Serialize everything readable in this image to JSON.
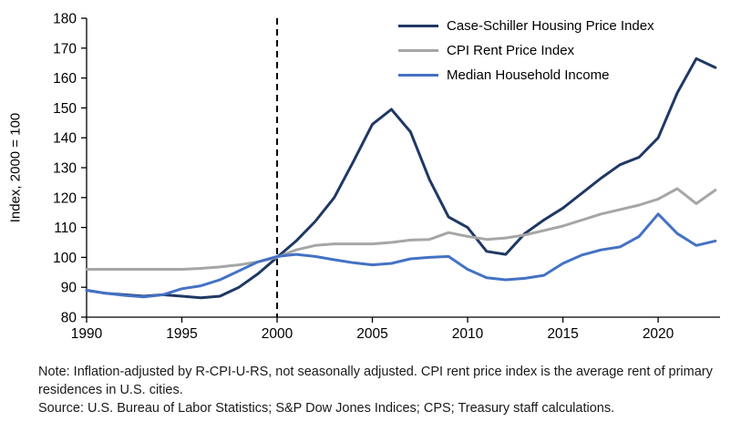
{
  "chart_data": {
    "type": "line",
    "title": "",
    "xlabel": "",
    "ylabel": "Index, 2000 = 100",
    "xlim": [
      1990,
      2023.25
    ],
    "ylim": [
      80,
      180
    ],
    "x_ticks": [
      1990,
      1995,
      2000,
      2005,
      2010,
      2015,
      2020
    ],
    "y_ticks": [
      80,
      90,
      100,
      110,
      120,
      130,
      140,
      150,
      160,
      170,
      180
    ],
    "grid": false,
    "legend_position": "top-right-inside",
    "reference_line_x": 2000,
    "x": [
      1990,
      1991,
      1992,
      1993,
      1994,
      1995,
      1996,
      1997,
      1998,
      1999,
      2000,
      2001,
      2002,
      2003,
      2004,
      2005,
      2006,
      2007,
      2008,
      2009,
      2010,
      2011,
      2012,
      2013,
      2014,
      2015,
      2016,
      2017,
      2018,
      2019,
      2020,
      2021,
      2022,
      2023
    ],
    "series": [
      {
        "name": "Case-Schiller Housing Price Index",
        "color": "#1f3864",
        "values": [
          89,
          88,
          87.5,
          87,
          87.5,
          87,
          86.5,
          87,
          90,
          94.5,
          100,
          105.5,
          112,
          120,
          132,
          144.5,
          149.5,
          142,
          126,
          113.5,
          110,
          102,
          101,
          108,
          112.5,
          116.5,
          121.5,
          126.5,
          131,
          133.5,
          140,
          155,
          166.5,
          163.5
        ]
      },
      {
        "name": "CPI Rent Price Index",
        "color": "#a6a6a6",
        "values": [
          96,
          96,
          96,
          96,
          96,
          96,
          96.3,
          96.8,
          97.5,
          98.5,
          100,
          102.5,
          104,
          104.5,
          104.5,
          104.5,
          105,
          105.8,
          106,
          108.3,
          107,
          106,
          106.5,
          107.5,
          109,
          110.5,
          112.5,
          114.5,
          116,
          117.5,
          119.5,
          123,
          118,
          122.5
        ]
      },
      {
        "name": "Median Household Income",
        "color": "#4472c4",
        "values": [
          89,
          88,
          87.3,
          86.8,
          87.5,
          89.5,
          90.5,
          92.5,
          95.5,
          98.5,
          100.3,
          101,
          100.3,
          99.2,
          98.2,
          97.5,
          98,
          99.5,
          100,
          100.3,
          96,
          93.2,
          92.5,
          93,
          94,
          98,
          100.8,
          102.5,
          103.5,
          107,
          114.5,
          108,
          104,
          105.5
        ]
      }
    ]
  },
  "notes": {
    "note": "Note: Inflation-adjusted by R-CPI-U-RS, not seasonally adjusted. CPI rent price index is the average rent of primary residences in U.S. cities.",
    "source": "Source: U.S. Bureau of Labor Statistics; S&P Dow Jones Indices; CPS; Treasury staff calculations."
  }
}
